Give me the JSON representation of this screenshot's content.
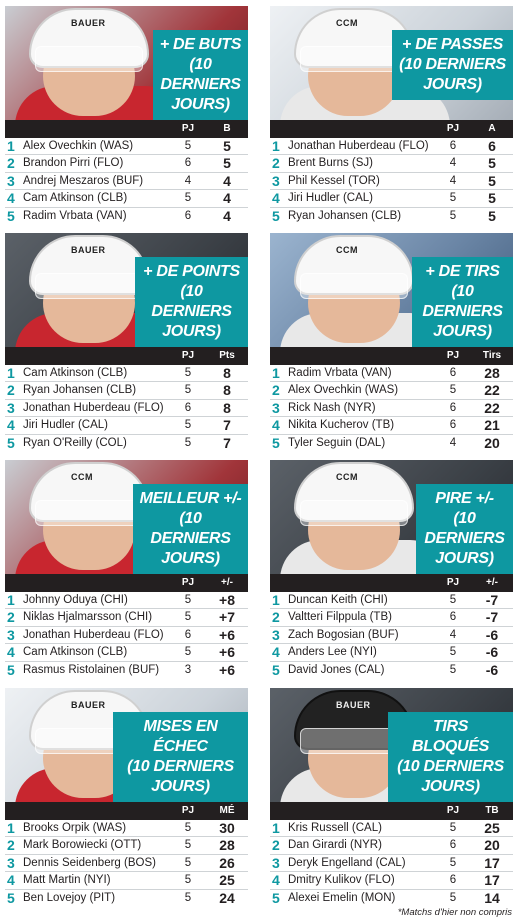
{
  "panels": [
    {
      "title": [
        "+ DE BUTS",
        "(10 DERNIERS",
        "JOURS)"
      ],
      "col1": "PJ",
      "col2": "B",
      "rows": [
        {
          "rank": "1",
          "name": "Alex Ovechkin (WAS)",
          "gp": "5",
          "val": "5"
        },
        {
          "rank": "2",
          "name": "Brandon Pirri (FLO)",
          "gp": "6",
          "val": "5"
        },
        {
          "rank": "3",
          "name": "Andrej Meszaros (BUF)",
          "gp": "4",
          "val": "4"
        },
        {
          "rank": "4",
          "name": "Cam Atkinson (CLB)",
          "gp": "5",
          "val": "4"
        },
        {
          "rank": "5",
          "name": "Radim Vrbata (VAN)",
          "gp": "6",
          "val": "4"
        }
      ]
    },
    {
      "title": [
        "+ DE PASSES",
        "(10 DERNIERS",
        "JOURS)"
      ],
      "col1": "PJ",
      "col2": "A",
      "rows": [
        {
          "rank": "1",
          "name": "Jonathan Huberdeau (FLO)",
          "gp": "6",
          "val": "6"
        },
        {
          "rank": "2",
          "name": "Brent Burns (SJ)",
          "gp": "4",
          "val": "5"
        },
        {
          "rank": "3",
          "name": "Phil Kessel (TOR)",
          "gp": "4",
          "val": "5"
        },
        {
          "rank": "4",
          "name": "Jiri Hudler (CAL)",
          "gp": "5",
          "val": "5"
        },
        {
          "rank": "5",
          "name": "Ryan Johansen (CLB)",
          "gp": "5",
          "val": "5"
        }
      ]
    },
    {
      "title": [
        "+ DE POINTS",
        "(10 DERNIERS",
        "JOURS)"
      ],
      "col1": "PJ",
      "col2": "Pts",
      "rows": [
        {
          "rank": "1",
          "name": "Cam Atkinson (CLB)",
          "gp": "5",
          "val": "8"
        },
        {
          "rank": "2",
          "name": "Ryan Johansen (CLB)",
          "gp": "5",
          "val": "8"
        },
        {
          "rank": "3",
          "name": "Jonathan Huberdeau (FLO)",
          "gp": "6",
          "val": "8"
        },
        {
          "rank": "4",
          "name": "Jiri Hudler (CAL)",
          "gp": "5",
          "val": "7"
        },
        {
          "rank": "5",
          "name": "Ryan O'Reilly (COL)",
          "gp": "5",
          "val": "7"
        }
      ]
    },
    {
      "title": [
        "+ DE TIRS",
        "(10 DERNIERS",
        "JOURS)"
      ],
      "col1": "PJ",
      "col2": "Tirs",
      "rows": [
        {
          "rank": "1",
          "name": "Radim Vrbata (VAN)",
          "gp": "6",
          "val": "28"
        },
        {
          "rank": "2",
          "name": "Alex Ovechkin (WAS)",
          "gp": "5",
          "val": "22"
        },
        {
          "rank": "3",
          "name": "Rick Nash (NYR)",
          "gp": "6",
          "val": "22"
        },
        {
          "rank": "4",
          "name": "Nikita Kucherov (TB)",
          "gp": "6",
          "val": "21"
        },
        {
          "rank": "5",
          "name": "Tyler Seguin (DAL)",
          "gp": "4",
          "val": "20"
        }
      ]
    },
    {
      "title": [
        "MEILLEUR +/-",
        "(10 DERNIERS",
        "JOURS)"
      ],
      "col1": "PJ",
      "col2": "+/-",
      "rows": [
        {
          "rank": "1",
          "name": "Johnny Oduya (CHI)",
          "gp": "5",
          "val": "+8"
        },
        {
          "rank": "2",
          "name": "Niklas Hjalmarsson (CHI)",
          "gp": "5",
          "val": "+7"
        },
        {
          "rank": "3",
          "name": "Jonathan Huberdeau (FLO)",
          "gp": "6",
          "val": "+6"
        },
        {
          "rank": "4",
          "name": "Cam Atkinson (CLB)",
          "gp": "5",
          "val": "+6"
        },
        {
          "rank": "5",
          "name": "Rasmus Ristolainen (BUF)",
          "gp": "3",
          "val": "+6"
        }
      ]
    },
    {
      "title": [
        "PIRE +/-",
        "(10 DERNIERS",
        "JOURS)"
      ],
      "col1": "PJ",
      "col2": "+/-",
      "rows": [
        {
          "rank": "1",
          "name": "Duncan Keith (CHI)",
          "gp": "5",
          "val": "-7"
        },
        {
          "rank": "2",
          "name": "Valtteri Filppula (TB)",
          "gp": "6",
          "val": "-7"
        },
        {
          "rank": "3",
          "name": "Zach Bogosian (BUF)",
          "gp": "4",
          "val": "-6"
        },
        {
          "rank": "4",
          "name": "Anders Lee (NYI)",
          "gp": "5",
          "val": "-6"
        },
        {
          "rank": "5",
          "name": "David Jones (CAL)",
          "gp": "5",
          "val": "-6"
        }
      ]
    },
    {
      "title": [
        "MISES EN ÉCHEC",
        "(10 DERNIERS",
        "JOURS)"
      ],
      "col1": "PJ",
      "col2": "MÉ",
      "rows": [
        {
          "rank": "1",
          "name": "Brooks Orpik (WAS)",
          "gp": "5",
          "val": "30"
        },
        {
          "rank": "2",
          "name": "Mark Borowiecki (OTT)",
          "gp": "5",
          "val": "28"
        },
        {
          "rank": "3",
          "name": "Dennis Seidenberg (BOS)",
          "gp": "5",
          "val": "26"
        },
        {
          "rank": "4",
          "name": "Matt Martin (NYI)",
          "gp": "5",
          "val": "25"
        },
        {
          "rank": "5",
          "name": "Ben Lovejoy (PIT)",
          "gp": "5",
          "val": "24"
        }
      ]
    },
    {
      "title": [
        "TIRS BLOQUÉS",
        "(10 DERNIERS",
        "JOURS)"
      ],
      "col1": "PJ",
      "col2": "TB",
      "rows": [
        {
          "rank": "1",
          "name": "Kris Russell (CAL)",
          "gp": "5",
          "val": "25"
        },
        {
          "rank": "2",
          "name": "Dan Girardi (NYR)",
          "gp": "6",
          "val": "20"
        },
        {
          "rank": "3",
          "name": "Deryk Engelland (CAL)",
          "gp": "5",
          "val": "17"
        },
        {
          "rank": "4",
          "name": "Dmitry Kulikov (FLO)",
          "gp": "6",
          "val": "17"
        },
        {
          "rank": "5",
          "name": "Alexei Emelin (MON)",
          "gp": "5",
          "val": "14"
        }
      ]
    }
  ],
  "photo_brands": [
    "BAUER",
    "CCM",
    "BAUER",
    "CCM",
    "CCM",
    "CCM",
    "BAUER",
    "BAUER"
  ],
  "footnote": "*Matchs d'hier non compris",
  "colors": {
    "accent": "#0e98a1",
    "header": "#231f20",
    "text": "#231f20"
  }
}
